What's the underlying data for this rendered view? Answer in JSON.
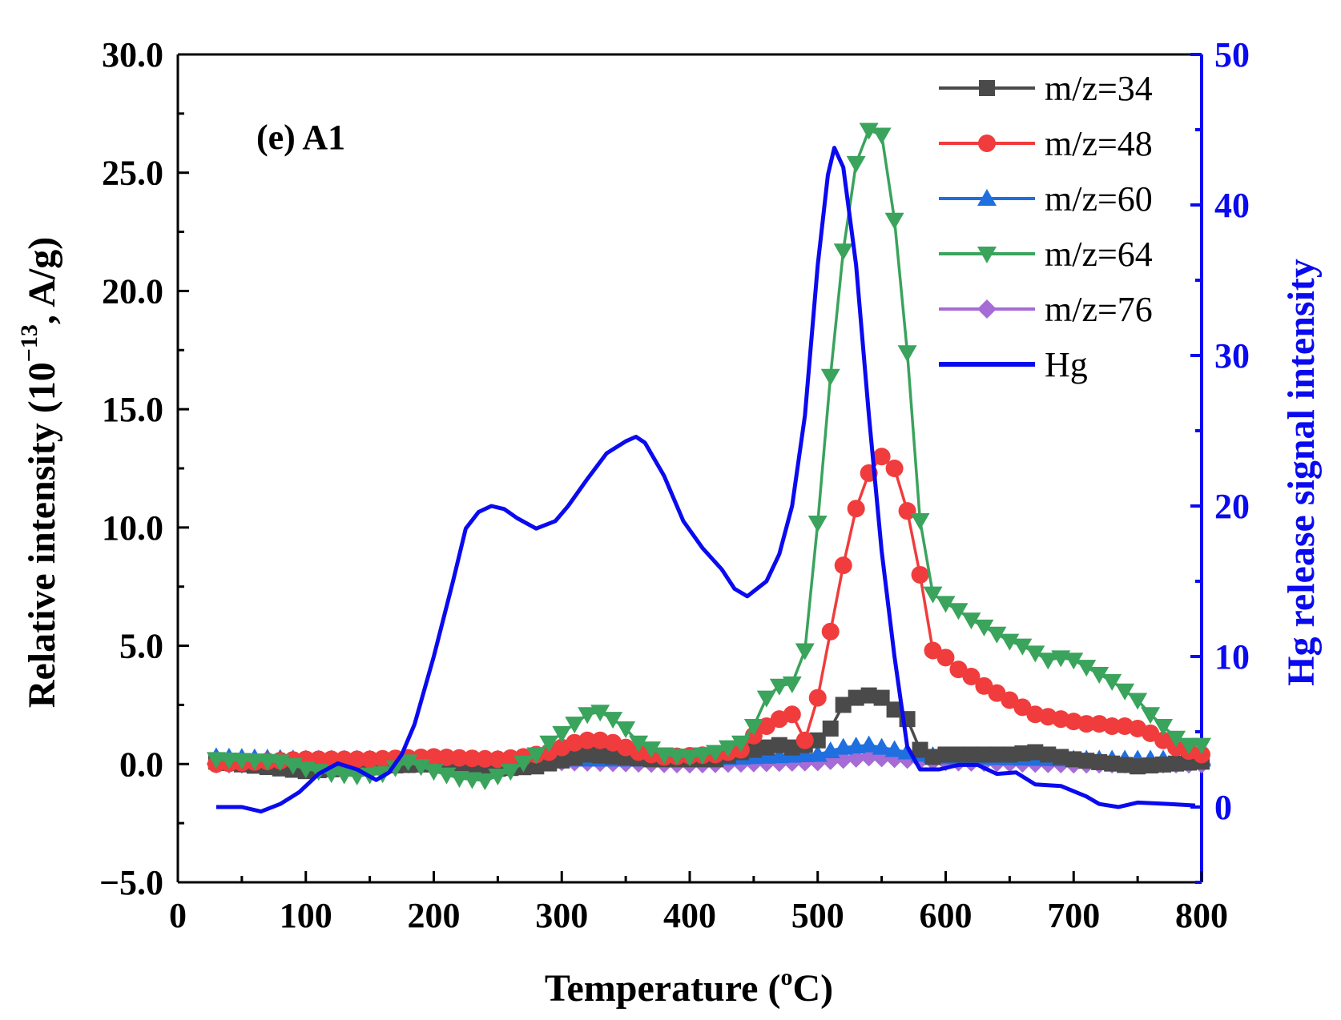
{
  "chart_data": {
    "type": "line",
    "annotation": "(e) A1",
    "xlabel": {
      "main": "Temperature (",
      "sup": "o",
      "tail": "C)"
    },
    "ylabel_left": {
      "main": "Relative intensity (10",
      "sup": "−13",
      "tail": ", A/g)"
    },
    "ylabel_right": "Hg release signal intensity",
    "xlim": [
      0,
      800
    ],
    "ylim_left": [
      -5,
      30
    ],
    "ylim_right": [
      -5,
      50
    ],
    "x_ticks": [
      "0",
      "100",
      "200",
      "300",
      "400",
      "500",
      "600",
      "700",
      "800"
    ],
    "y_left_ticks": [
      "−5.0",
      "0.0",
      "5.0",
      "10.0",
      "15.0",
      "20.0",
      "25.0",
      "30.0"
    ],
    "y_right_ticks": [
      "0",
      "10",
      "20",
      "30",
      "40",
      "50"
    ],
    "legend_position": "top-right",
    "series": [
      {
        "name": "m/z=34",
        "color": "#4a4a4a",
        "marker": "square",
        "axis": "left",
        "points": [
          [
            30,
            0.1
          ],
          [
            100,
            -0.3
          ],
          [
            150,
            -0.1
          ],
          [
            200,
            0.0
          ],
          [
            250,
            -0.2
          ],
          [
            280,
            -0.1
          ],
          [
            320,
            0.4
          ],
          [
            370,
            0.2
          ],
          [
            420,
            0.2
          ],
          [
            440,
            0.5
          ],
          [
            460,
            0.7
          ],
          [
            470,
            0.8
          ],
          [
            480,
            0.7
          ],
          [
            490,
            0.8
          ],
          [
            500,
            1.0
          ],
          [
            510,
            1.5
          ],
          [
            520,
            2.5
          ],
          [
            530,
            2.8
          ],
          [
            540,
            2.9
          ],
          [
            550,
            2.8
          ],
          [
            560,
            2.3
          ],
          [
            570,
            1.9
          ],
          [
            580,
            0.6
          ],
          [
            590,
            0.3
          ],
          [
            600,
            0.4
          ],
          [
            650,
            0.4
          ],
          [
            670,
            0.5
          ],
          [
            700,
            0.2
          ],
          [
            750,
            -0.1
          ],
          [
            800,
            0.1
          ]
        ]
      },
      {
        "name": "m/z=48",
        "color": "#f03c3c",
        "marker": "circle",
        "axis": "left",
        "points": [
          [
            30,
            0.0
          ],
          [
            100,
            0.2
          ],
          [
            150,
            0.2
          ],
          [
            200,
            0.3
          ],
          [
            250,
            0.2
          ],
          [
            270,
            0.3
          ],
          [
            290,
            0.5
          ],
          [
            310,
            0.9
          ],
          [
            320,
            1.0
          ],
          [
            330,
            1.0
          ],
          [
            340,
            0.9
          ],
          [
            350,
            0.7
          ],
          [
            360,
            0.5
          ],
          [
            380,
            0.3
          ],
          [
            420,
            0.4
          ],
          [
            440,
            0.6
          ],
          [
            450,
            1.2
          ],
          [
            460,
            1.6
          ],
          [
            470,
            1.9
          ],
          [
            480,
            2.1
          ],
          [
            490,
            1.0
          ],
          [
            500,
            2.8
          ],
          [
            510,
            5.6
          ],
          [
            520,
            8.4
          ],
          [
            530,
            10.8
          ],
          [
            540,
            12.3
          ],
          [
            550,
            13.0
          ],
          [
            560,
            12.5
          ],
          [
            570,
            10.7
          ],
          [
            580,
            8.0
          ],
          [
            590,
            4.8
          ],
          [
            600,
            4.5
          ],
          [
            610,
            4.0
          ],
          [
            620,
            3.7
          ],
          [
            630,
            3.3
          ],
          [
            640,
            3.0
          ],
          [
            650,
            2.7
          ],
          [
            660,
            2.4
          ],
          [
            670,
            2.1
          ],
          [
            680,
            2.0
          ],
          [
            690,
            1.9
          ],
          [
            700,
            1.8
          ],
          [
            710,
            1.7
          ],
          [
            720,
            1.7
          ],
          [
            730,
            1.6
          ],
          [
            740,
            1.6
          ],
          [
            750,
            1.5
          ],
          [
            760,
            1.3
          ],
          [
            770,
            1.0
          ],
          [
            780,
            0.7
          ],
          [
            800,
            0.4
          ]
        ]
      },
      {
        "name": "m/z=60",
        "color": "#1f6fe0",
        "marker": "triangle-up",
        "axis": "left",
        "points": [
          [
            30,
            0.3
          ],
          [
            100,
            0.2
          ],
          [
            200,
            0.2
          ],
          [
            300,
            0.2
          ],
          [
            400,
            0.2
          ],
          [
            450,
            0.3
          ],
          [
            500,
            0.4
          ],
          [
            520,
            0.7
          ],
          [
            540,
            0.8
          ],
          [
            560,
            0.6
          ],
          [
            580,
            0.4
          ],
          [
            600,
            0.3
          ],
          [
            700,
            0.2
          ],
          [
            800,
            0.2
          ]
        ]
      },
      {
        "name": "m/z=64",
        "color": "#3aa35c",
        "marker": "triangle-down",
        "axis": "left",
        "points": [
          [
            30,
            0.2
          ],
          [
            80,
            0.1
          ],
          [
            100,
            -0.2
          ],
          [
            120,
            -0.4
          ],
          [
            140,
            -0.5
          ],
          [
            160,
            -0.4
          ],
          [
            180,
            0.1
          ],
          [
            200,
            -0.3
          ],
          [
            220,
            -0.6
          ],
          [
            240,
            -0.7
          ],
          [
            260,
            -0.3
          ],
          [
            280,
            0.4
          ],
          [
            290,
            0.9
          ],
          [
            300,
            1.3
          ],
          [
            310,
            1.7
          ],
          [
            320,
            2.1
          ],
          [
            330,
            2.2
          ],
          [
            340,
            1.9
          ],
          [
            350,
            1.5
          ],
          [
            360,
            0.9
          ],
          [
            380,
            0.4
          ],
          [
            400,
            0.3
          ],
          [
            420,
            0.5
          ],
          [
            440,
            0.9
          ],
          [
            450,
            1.6
          ],
          [
            460,
            2.8
          ],
          [
            470,
            3.3
          ],
          [
            480,
            3.4
          ],
          [
            490,
            4.8
          ],
          [
            500,
            10.2
          ],
          [
            510,
            16.4
          ],
          [
            520,
            21.7
          ],
          [
            530,
            25.4
          ],
          [
            540,
            26.8
          ],
          [
            550,
            26.6
          ],
          [
            560,
            23.0
          ],
          [
            570,
            17.4
          ],
          [
            580,
            10.3
          ],
          [
            590,
            7.2
          ],
          [
            600,
            6.8
          ],
          [
            610,
            6.5
          ],
          [
            620,
            6.1
          ],
          [
            630,
            5.8
          ],
          [
            640,
            5.5
          ],
          [
            650,
            5.2
          ],
          [
            660,
            5.0
          ],
          [
            670,
            4.7
          ],
          [
            680,
            4.4
          ],
          [
            690,
            4.5
          ],
          [
            700,
            4.4
          ],
          [
            710,
            4.1
          ],
          [
            720,
            3.8
          ],
          [
            730,
            3.5
          ],
          [
            740,
            3.1
          ],
          [
            750,
            2.7
          ],
          [
            760,
            2.1
          ],
          [
            770,
            1.6
          ],
          [
            780,
            1.1
          ],
          [
            790,
            0.8
          ],
          [
            800,
            0.8
          ]
        ]
      },
      {
        "name": "m/z=76",
        "color": "#a56bd6",
        "marker": "diamond",
        "axis": "left",
        "points": [
          [
            30,
            0.0
          ],
          [
            200,
            0.0
          ],
          [
            300,
            0.1
          ],
          [
            400,
            0.0
          ],
          [
            500,
            0.1
          ],
          [
            540,
            0.3
          ],
          [
            600,
            0.1
          ],
          [
            700,
            0.0
          ],
          [
            800,
            0.0
          ]
        ]
      },
      {
        "name": "Hg",
        "color": "#0a0af0",
        "marker": "none",
        "axis": "right",
        "points": [
          [
            30,
            0.0
          ],
          [
            50,
            0.0
          ],
          [
            65,
            -0.3
          ],
          [
            80,
            0.2
          ],
          [
            95,
            1.0
          ],
          [
            110,
            2.2
          ],
          [
            125,
            2.9
          ],
          [
            140,
            2.5
          ],
          [
            155,
            1.8
          ],
          [
            165,
            2.3
          ],
          [
            175,
            3.5
          ],
          [
            185,
            5.5
          ],
          [
            200,
            10.0
          ],
          [
            215,
            15.0
          ],
          [
            225,
            18.5
          ],
          [
            235,
            19.6
          ],
          [
            245,
            20.0
          ],
          [
            255,
            19.8
          ],
          [
            265,
            19.2
          ],
          [
            280,
            18.5
          ],
          [
            295,
            19.0
          ],
          [
            305,
            20.0
          ],
          [
            320,
            21.8
          ],
          [
            335,
            23.5
          ],
          [
            350,
            24.3
          ],
          [
            358,
            24.6
          ],
          [
            365,
            24.2
          ],
          [
            380,
            22.0
          ],
          [
            395,
            19.0
          ],
          [
            410,
            17.2
          ],
          [
            425,
            15.8
          ],
          [
            435,
            14.5
          ],
          [
            445,
            14.0
          ],
          [
            460,
            15.0
          ],
          [
            470,
            16.8
          ],
          [
            480,
            20.0
          ],
          [
            490,
            26.0
          ],
          [
            500,
            36.0
          ],
          [
            508,
            42.0
          ],
          [
            513,
            43.8
          ],
          [
            520,
            42.5
          ],
          [
            530,
            36.0
          ],
          [
            540,
            26.0
          ],
          [
            550,
            17.0
          ],
          [
            560,
            10.0
          ],
          [
            570,
            4.0
          ],
          [
            580,
            2.5
          ],
          [
            595,
            2.5
          ],
          [
            610,
            2.8
          ],
          [
            625,
            2.8
          ],
          [
            640,
            2.2
          ],
          [
            655,
            2.3
          ],
          [
            670,
            1.5
          ],
          [
            690,
            1.4
          ],
          [
            710,
            0.7
          ],
          [
            720,
            0.2
          ],
          [
            735,
            0.0
          ],
          [
            750,
            0.3
          ],
          [
            775,
            0.2
          ],
          [
            795,
            0.1
          ]
        ]
      }
    ]
  }
}
